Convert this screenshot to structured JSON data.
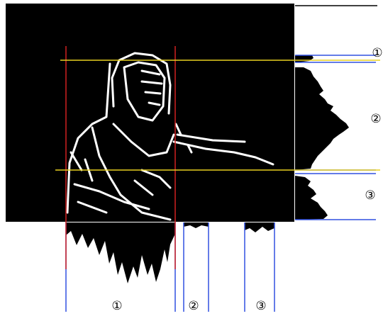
{
  "labels": {
    "right": [
      "①",
      "②",
      "③"
    ],
    "bottom": [
      "①",
      "②",
      "③"
    ]
  }
}
